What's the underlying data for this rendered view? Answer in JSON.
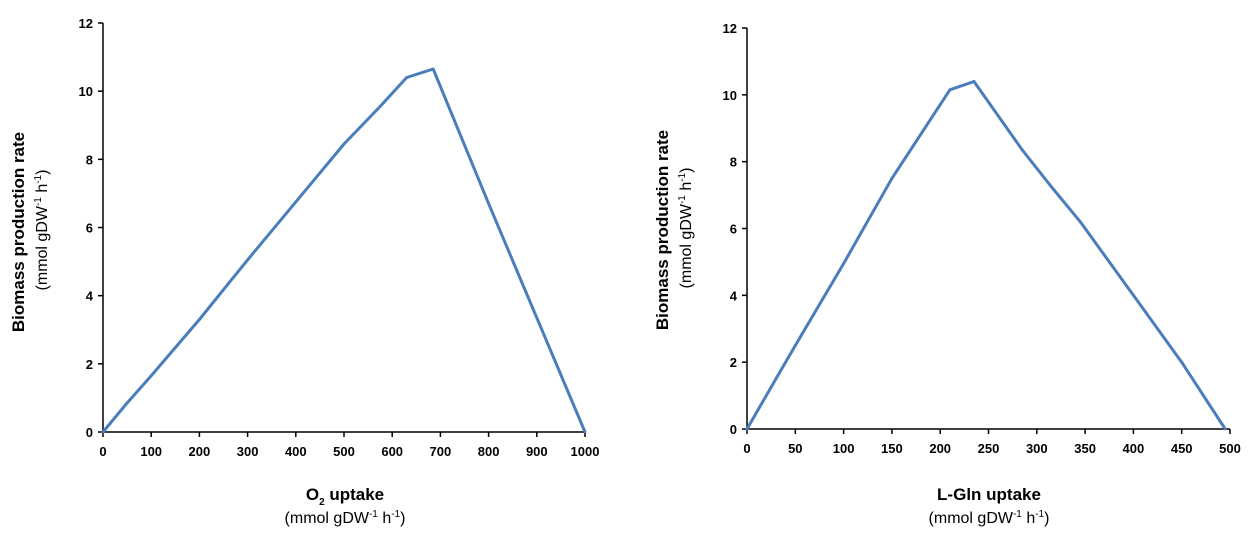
{
  "chart_data": [
    {
      "type": "line",
      "color": "#4a7ebb",
      "xlabel_main": "O",
      "xlabel_sub": "2",
      "xlabel_rest": " uptake",
      "xunit_a": "(mmol gDW",
      "xunit_sup1": "-1",
      "xunit_b": " h",
      "xunit_sup2": "-1",
      "xunit_c": ")",
      "ylabel": "Biomass production rate",
      "yunit_a": "(mmol gDW",
      "yunit_sup1": "-1",
      "yunit_b": " h",
      "yunit_sup2": "-1",
      "yunit_c": ")",
      "xlim": [
        0,
        1000
      ],
      "ylim": [
        0,
        12
      ],
      "xticks": [
        0,
        100,
        200,
        300,
        400,
        500,
        600,
        700,
        800,
        900,
        1000
      ],
      "yticks": [
        0,
        2,
        4,
        6,
        8,
        10,
        12
      ],
      "x": [
        0,
        50,
        100,
        200,
        260,
        300,
        400,
        500,
        575,
        630,
        685,
        800,
        1000
      ],
      "y": [
        0,
        0.85,
        1.65,
        3.3,
        4.35,
        5.05,
        6.75,
        8.45,
        9.55,
        10.4,
        10.65,
        6.7,
        0
      ]
    },
    {
      "type": "line",
      "color": "#4a7ebb",
      "xlabel_main": "L-Gln uptake",
      "xlabel_sub": "",
      "xlabel_rest": "",
      "xunit_a": "(mmol gDW",
      "xunit_sup1": "-1",
      "xunit_b": " h",
      "xunit_sup2": "-1",
      "xunit_c": ")",
      "ylabel": "Biomass production rate",
      "yunit_a": "(mmol gDW",
      "yunit_sup1": "-1",
      "yunit_b": " h",
      "yunit_sup2": "-1",
      "yunit_c": ")",
      "xlim": [
        0,
        500
      ],
      "ylim": [
        0,
        12
      ],
      "xticks": [
        0,
        50,
        100,
        150,
        200,
        250,
        300,
        350,
        400,
        450,
        500
      ],
      "yticks": [
        0,
        2,
        4,
        6,
        8,
        10,
        12
      ],
      "x": [
        0,
        25,
        50,
        100,
        150,
        210,
        235,
        285,
        315,
        345,
        400,
        450,
        495
      ],
      "y": [
        0,
        1.25,
        2.5,
        4.95,
        7.5,
        10.15,
        10.4,
        8.35,
        7.25,
        6.2,
        4.0,
        2.0,
        0
      ]
    }
  ]
}
